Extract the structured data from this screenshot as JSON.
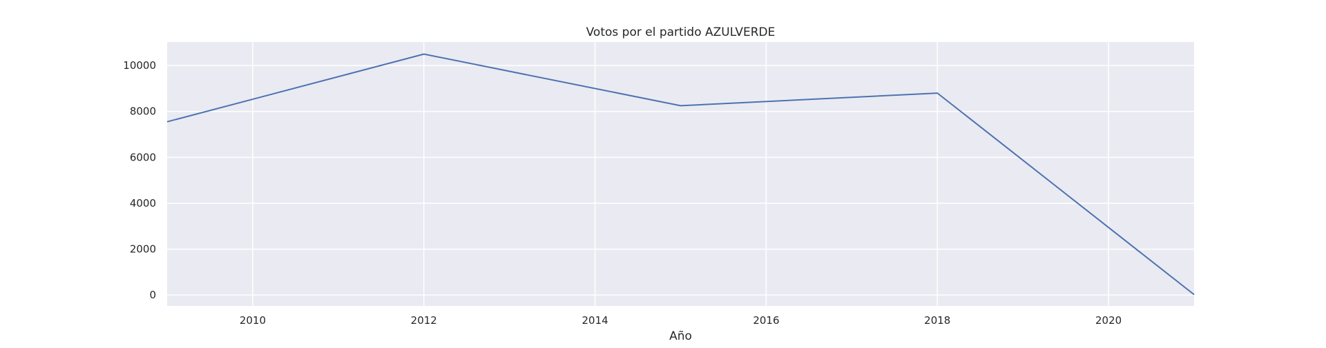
{
  "chart_data": {
    "type": "line",
    "title": "Votos por el partido AZULVERDE",
    "xlabel": "Año",
    "ylabel": "",
    "x": [
      2009,
      2012,
      2015,
      2018,
      2021
    ],
    "series": [
      {
        "values": [
          7550,
          10500,
          8250,
          8800,
          20
        ]
      }
    ],
    "xlim": [
      2009,
      2021
    ],
    "ylim": [
      -475,
      11025
    ],
    "xticks": [
      2010,
      2012,
      2014,
      2016,
      2018,
      2020
    ],
    "yticks": [
      0,
      2000,
      4000,
      6000,
      8000,
      10000
    ],
    "grid": true,
    "legend": "none",
    "colors": {
      "line": "#4c72b0",
      "plot_background": "#eaeaf2",
      "grid": "#ffffff"
    }
  }
}
